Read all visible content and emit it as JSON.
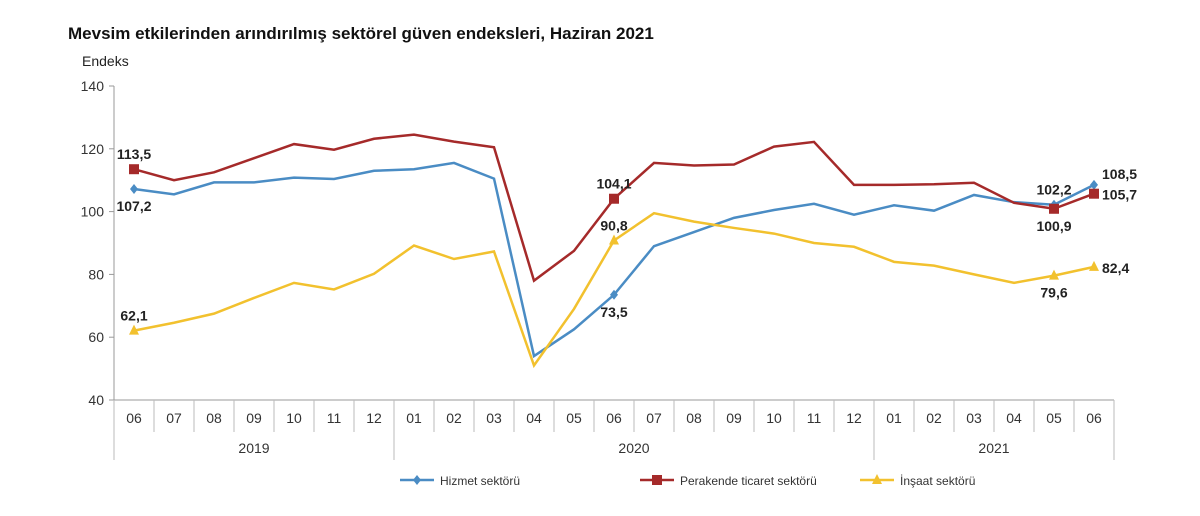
{
  "chart_data": {
    "type": "line",
    "title": "Mevsim etkilerinden arındırılmış sektörel güven endeksleri, Haziran 2021",
    "ylabel": "Endeks",
    "xlabel": "",
    "ylim": [
      40,
      140
    ],
    "yticks": [
      40,
      60,
      80,
      100,
      120,
      140
    ],
    "grid": false,
    "legend": "bottom",
    "categories": [
      "06",
      "07",
      "08",
      "09",
      "10",
      "11",
      "12",
      "01",
      "02",
      "03",
      "04",
      "05",
      "06",
      "07",
      "08",
      "09",
      "10",
      "11",
      "12",
      "01",
      "02",
      "03",
      "04",
      "05",
      "06"
    ],
    "years": [
      {
        "label": "2019",
        "count": 7
      },
      {
        "label": "2020",
        "count": 12
      },
      {
        "label": "2021",
        "count": 6
      }
    ],
    "series": [
      {
        "name": "Hizmet sektörü",
        "color": "#4a8cc4",
        "marker": "diamond",
        "values": [
          107.2,
          105.5,
          109.3,
          109.3,
          110.8,
          110.4,
          113.0,
          113.5,
          115.5,
          110.5,
          54.0,
          62.5,
          73.5,
          89.0,
          93.5,
          98.0,
          100.5,
          102.5,
          99.0,
          102.0,
          100.3,
          105.3,
          103.0,
          102.2,
          108.5
        ],
        "labels": [
          {
            "index": 0,
            "text": "107,2",
            "pos": "below"
          },
          {
            "index": 12,
            "text": "73,5",
            "pos": "below"
          },
          {
            "index": 23,
            "text": "102,2",
            "pos": "above"
          },
          {
            "index": 24,
            "text": "108,5",
            "pos": "right-up"
          }
        ]
      },
      {
        "name": "Perakende ticaret sektörü",
        "color": "#a52a2a",
        "marker": "square",
        "values": [
          113.5,
          110.0,
          112.5,
          117.0,
          121.5,
          119.7,
          123.2,
          124.5,
          122.3,
          120.5,
          78.0,
          87.5,
          104.1,
          115.5,
          114.7,
          115.0,
          120.7,
          122.2,
          108.5,
          108.5,
          108.7,
          109.2,
          102.8,
          100.9,
          105.7
        ],
        "labels": [
          {
            "index": 0,
            "text": "113,5",
            "pos": "above"
          },
          {
            "index": 12,
            "text": "104,1",
            "pos": "above"
          },
          {
            "index": 23,
            "text": "100,9",
            "pos": "below"
          },
          {
            "index": 24,
            "text": "105,7",
            "pos": "right"
          }
        ]
      },
      {
        "name": "İnşaat sektörü",
        "color": "#f2c12e",
        "marker": "triangle",
        "values": [
          62.1,
          64.6,
          67.5,
          72.5,
          77.3,
          75.2,
          80.2,
          89.2,
          84.9,
          87.3,
          51.0,
          69.0,
          90.8,
          99.5,
          96.8,
          94.8,
          93.0,
          90.0,
          88.8,
          84.0,
          82.8,
          80.0,
          77.3,
          79.6,
          82.4
        ],
        "labels": [
          {
            "index": 0,
            "text": "62,1",
            "pos": "above"
          },
          {
            "index": 12,
            "text": "90,8",
            "pos": "above"
          },
          {
            "index": 23,
            "text": "79,6",
            "pos": "below"
          },
          {
            "index": 24,
            "text": "82,4",
            "pos": "right"
          }
        ]
      }
    ]
  }
}
